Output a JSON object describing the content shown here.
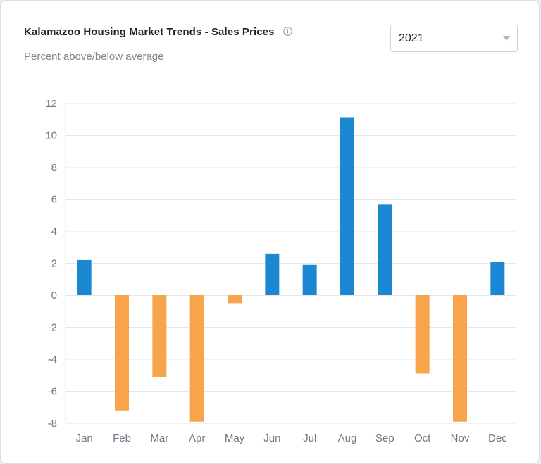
{
  "header": {
    "title": "Kalamazoo Housing Market Trends - Sales Prices",
    "subtitle": "Percent above/below average",
    "info_icon": "info-circle-icon"
  },
  "year_select": {
    "value": "2021",
    "icon": "chevron-down-icon"
  },
  "colors": {
    "positive": "#1c87d3",
    "negative": "#f7a44a",
    "grid": "#e3e6ea",
    "axis_text": "#6f7782"
  },
  "chart_data": {
    "type": "bar",
    "categories": [
      "Jan",
      "Feb",
      "Mar",
      "Apr",
      "May",
      "Jun",
      "Jul",
      "Aug",
      "Sep",
      "Oct",
      "Nov",
      "Dec"
    ],
    "values": [
      2.2,
      -7.2,
      -5.1,
      -7.9,
      -0.5,
      2.6,
      1.9,
      11.1,
      5.7,
      -4.9,
      -7.9,
      2.1
    ],
    "title": "Kalamazoo Housing Market Trends - Sales Prices",
    "subtitle": "Percent above/below average",
    "xlabel": "",
    "ylabel": "",
    "ylim": [
      -8,
      12
    ],
    "yticks": [
      12,
      10,
      8,
      6,
      4,
      2,
      0,
      -2,
      -4,
      -6,
      -8
    ],
    "grid": true,
    "legend": "none"
  }
}
